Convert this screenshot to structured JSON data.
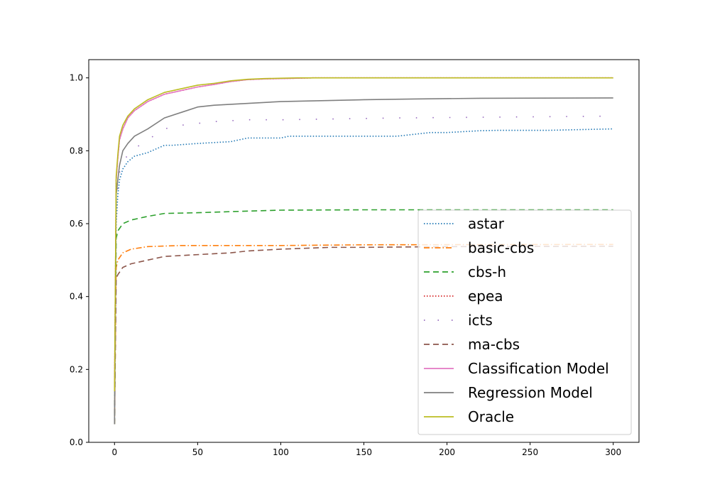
{
  "chart_data": {
    "type": "line",
    "title": "",
    "xlabel": "",
    "ylabel": "",
    "xlim": [
      -15.5,
      315.5
    ],
    "ylim": [
      0.0,
      1.05
    ],
    "xticks": [
      0,
      50,
      100,
      150,
      200,
      250,
      300
    ],
    "yticks": [
      0.0,
      0.2,
      0.4,
      0.6,
      0.8,
      1.0
    ],
    "xtick_labels": [
      "0",
      "50",
      "100",
      "150",
      "200",
      "250",
      "300"
    ],
    "ytick_labels": [
      "0.0",
      "0.2",
      "0.4",
      "0.6",
      "0.8",
      "1.0"
    ],
    "grid": false,
    "legend_position": "lower-right",
    "series": [
      {
        "name": "astar",
        "color": "#1f77b4",
        "style": "dotted",
        "x": [
          0,
          1,
          2,
          3,
          5,
          8,
          12,
          20,
          30,
          35,
          50,
          70,
          80,
          100,
          105,
          150,
          170,
          190,
          200,
          220,
          230,
          260,
          280,
          300
        ],
        "y": [
          0.05,
          0.6,
          0.68,
          0.72,
          0.75,
          0.77,
          0.785,
          0.795,
          0.815,
          0.815,
          0.82,
          0.825,
          0.835,
          0.835,
          0.84,
          0.84,
          0.84,
          0.85,
          0.85,
          0.855,
          0.856,
          0.856,
          0.858,
          0.86
        ]
      },
      {
        "name": "basic-cbs",
        "color": "#ff7f0e",
        "style": "dashdot",
        "x": [
          0,
          1,
          2,
          5,
          10,
          20,
          40,
          100,
          150,
          300
        ],
        "y": [
          0.05,
          0.48,
          0.5,
          0.52,
          0.53,
          0.537,
          0.54,
          0.54,
          0.542,
          0.543
        ]
      },
      {
        "name": "cbs-h",
        "color": "#2ca02c",
        "style": "dashed",
        "x": [
          0,
          1,
          2,
          5,
          10,
          20,
          30,
          50,
          70,
          100,
          150,
          300
        ],
        "y": [
          0.05,
          0.56,
          0.58,
          0.6,
          0.61,
          0.62,
          0.628,
          0.63,
          0.633,
          0.637,
          0.638,
          0.638
        ]
      },
      {
        "name": "epea",
        "color": "#d62728",
        "style": "dotted",
        "x": [
          0,
          1,
          2,
          3,
          5,
          8,
          12,
          20,
          30,
          40,
          50,
          60,
          70,
          80,
          90,
          100,
          120,
          300
        ],
        "y": [
          0.14,
          0.72,
          0.78,
          0.83,
          0.86,
          0.89,
          0.91,
          0.935,
          0.955,
          0.965,
          0.975,
          0.982,
          0.99,
          0.995,
          0.997,
          0.998,
          1.0,
          1.0
        ]
      },
      {
        "name": "icts",
        "color": "#9467bd",
        "style": "loosedot",
        "x": [
          0,
          1,
          2,
          3,
          5,
          10,
          20,
          30,
          40,
          60,
          80,
          100,
          170,
          300
        ],
        "y": [
          0.1,
          0.65,
          0.7,
          0.74,
          0.77,
          0.8,
          0.83,
          0.86,
          0.87,
          0.88,
          0.885,
          0.885,
          0.89,
          0.895
        ]
      },
      {
        "name": "ma-cbs",
        "color": "#8c564b",
        "style": "dashed",
        "x": [
          0,
          1,
          2,
          5,
          10,
          20,
          30,
          50,
          70,
          80,
          100,
          130,
          150,
          200,
          300
        ],
        "y": [
          0.05,
          0.45,
          0.46,
          0.48,
          0.49,
          0.5,
          0.51,
          0.515,
          0.52,
          0.525,
          0.53,
          0.535,
          0.535,
          0.537,
          0.538
        ]
      },
      {
        "name": "Classification Model",
        "color": "#e377c2",
        "style": "solid",
        "x": [
          0,
          1,
          2,
          3,
          5,
          8,
          12,
          20,
          30,
          40,
          50,
          60,
          70,
          80,
          90,
          100,
          120,
          300
        ],
        "y": [
          0.14,
          0.72,
          0.78,
          0.83,
          0.86,
          0.89,
          0.91,
          0.935,
          0.955,
          0.965,
          0.975,
          0.982,
          0.99,
          0.995,
          0.997,
          0.998,
          1.0,
          1.0
        ]
      },
      {
        "name": "Regression Model",
        "color": "#7f7f7f",
        "style": "solid",
        "x": [
          0,
          1,
          2,
          3,
          5,
          8,
          12,
          20,
          30,
          40,
          50,
          60,
          100,
          150,
          180,
          220,
          300
        ],
        "y": [
          0.05,
          0.68,
          0.72,
          0.76,
          0.8,
          0.82,
          0.84,
          0.86,
          0.89,
          0.905,
          0.92,
          0.925,
          0.935,
          0.94,
          0.942,
          0.944,
          0.945
        ]
      },
      {
        "name": "Oracle",
        "color": "#bcbd22",
        "style": "solid",
        "x": [
          0,
          1,
          2,
          3,
          5,
          8,
          12,
          20,
          30,
          40,
          50,
          60,
          70,
          80,
          90,
          100,
          110,
          300
        ],
        "y": [
          0.14,
          0.73,
          0.79,
          0.84,
          0.87,
          0.895,
          0.915,
          0.94,
          0.96,
          0.97,
          0.98,
          0.985,
          0.992,
          0.996,
          0.998,
          0.999,
          1.0,
          1.0
        ]
      }
    ]
  }
}
